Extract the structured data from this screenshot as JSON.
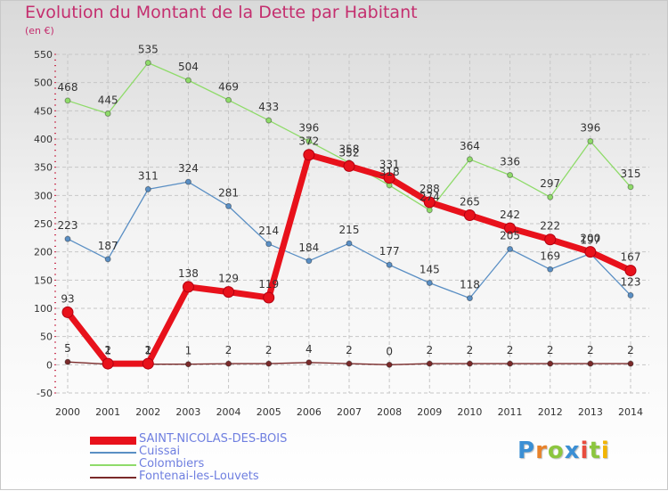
{
  "title": "Evolution du Montant de la Dette par Habitant",
  "unit_label": "(en €)",
  "colors": {
    "title": "#c42e6e",
    "legend_text": "#6f7fe0",
    "axis_text": "#333333",
    "grid": "#c6c6c6"
  },
  "logo": {
    "letters": [
      "P",
      "r",
      "o",
      "x",
      "i",
      "t",
      "i"
    ],
    "colors": [
      "#3b8fd4",
      "#e8822a",
      "#8cc63f",
      "#3b8fd4",
      "#e84c3d",
      "#8cc63f",
      "#f2b400"
    ]
  },
  "chart_data": {
    "type": "line",
    "title": "Evolution du Montant de la Dette par Habitant",
    "ylabel": "(en €)",
    "x": [
      "2000",
      "2001",
      "2002",
      "2003",
      "2004",
      "2005",
      "2006",
      "2007",
      "2008",
      "2009",
      "2010",
      "2011",
      "2012",
      "2013",
      "2014"
    ],
    "yticks": [
      "550",
      "500",
      "450",
      "400",
      "350",
      "300",
      "250",
      "200",
      "150",
      "100",
      "50",
      "0",
      "-50"
    ],
    "ylim": [
      -50,
      550
    ],
    "grid": true,
    "legend_position": "bottom-left",
    "series": [
      {
        "name": "SAINT-NICOLAS-DES-BOIS",
        "color": "#e8111b",
        "values": [
          93,
          2,
          2,
          138,
          129,
          119,
          372,
          352,
          331,
          288,
          265,
          242,
          222,
          200,
          167
        ],
        "labels": [
          "93",
          "2",
          "2",
          "138",
          "129",
          "119",
          "372",
          "352",
          "331",
          "288",
          "265",
          "242",
          "222",
          "200",
          "167"
        ]
      },
      {
        "name": "Cuissai",
        "color": "#5a8fc4",
        "values": [
          223,
          187,
          311,
          324,
          281,
          214,
          184,
          215,
          177,
          145,
          118,
          205,
          169,
          197,
          123
        ],
        "labels": [
          "223",
          "187",
          "311",
          "324",
          "281",
          "214",
          "184",
          "215",
          "177",
          "145",
          "118",
          "205",
          "169",
          "197",
          "123"
        ]
      },
      {
        "name": "Colombiers",
        "color": "#8fdb6a",
        "values": [
          468,
          445,
          535,
          504,
          469,
          433,
          396,
          358,
          318,
          274,
          364,
          336,
          297,
          396,
          315
        ],
        "labels": [
          "468",
          "445",
          "535",
          "504",
          "469",
          "433",
          "396",
          "358",
          "318",
          "274",
          "364",
          "336",
          "297",
          "396",
          "315"
        ]
      },
      {
        "name": "Fontenai-les-Louvets",
        "color": "#7a2a2a",
        "values": [
          5,
          1,
          1,
          1,
          2,
          2,
          4,
          2,
          0,
          2,
          2,
          2,
          2,
          2,
          2
        ],
        "labels": [
          "5",
          "1",
          "1",
          "1",
          "2",
          "2",
          "4",
          "2",
          "0",
          "2",
          "2",
          "2",
          "2",
          "2",
          "2"
        ]
      }
    ]
  }
}
